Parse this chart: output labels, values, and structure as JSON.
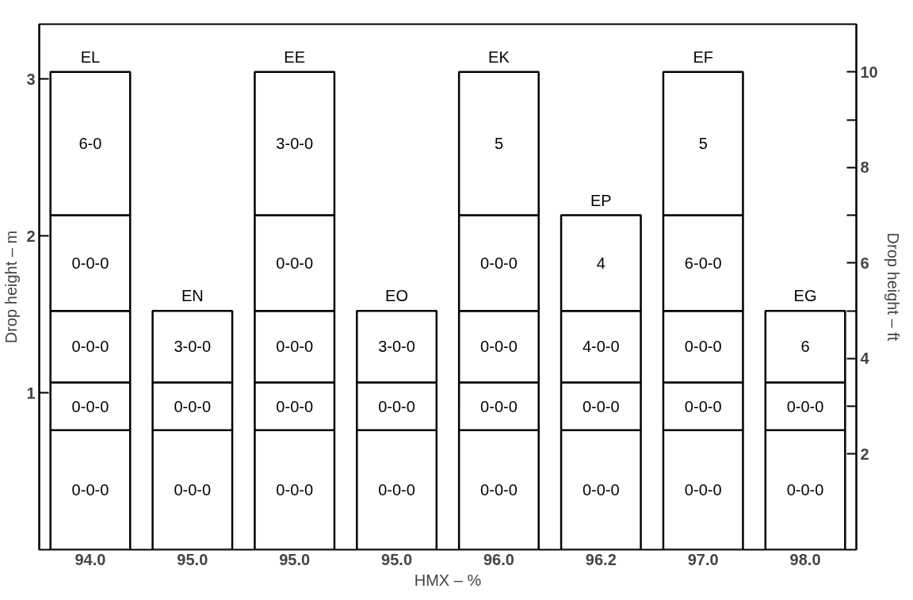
{
  "chart_data": {
    "type": "bar",
    "stacked": true,
    "xlabel": "HMX – %",
    "ylabel": "Drop height – m",
    "y2label": "Drop height – ft",
    "categories": [
      "94.0",
      "95.0",
      "95.0",
      "95.0",
      "96.0",
      "96.2",
      "97.0",
      "98.0"
    ],
    "ylim": [
      0,
      3.35
    ],
    "yticks": [
      1,
      2,
      3
    ],
    "y2lim": [
      0,
      11
    ],
    "y2ticks": [
      2,
      {
        "value": 3,
        "label": null
      },
      4,
      {
        "value": 5,
        "label": null
      },
      6,
      {
        "value": 7,
        "label": null
      },
      8,
      {
        "value": 9,
        "label": null
      },
      10
    ],
    "series": [
      {
        "color": "#ffffff",
        "axis": "y2",
        "values": [
          2.5,
          2.5,
          2.5,
          2.5,
          2.5,
          2.5,
          2.5,
          2.5
        ]
      },
      {
        "color": "#ffffff",
        "axis": "y2",
        "values": [
          1,
          1,
          1,
          1,
          1,
          1,
          1,
          1
        ]
      },
      {
        "color": "#ffffff",
        "axis": "y2",
        "values": [
          1.5,
          1.5,
          1.5,
          1.5,
          1.5,
          1.5,
          1.5,
          1.5
        ]
      },
      {
        "color": "#ffffff",
        "axis": "y2",
        "values": [
          2,
          null,
          2,
          null,
          2,
          2,
          2,
          null
        ]
      },
      {
        "color": "#ffffff",
        "axis": "y2",
        "values": [
          3,
          null,
          3,
          null,
          3,
          null,
          3,
          null
        ]
      }
    ],
    "annotations": [
      "EL",
      "0-0-0",
      "0-0-0",
      "0-0-0",
      "0-0-0",
      "6-0",
      "EN",
      "0-0-0",
      "0-0-0",
      "3-0-0",
      "EE",
      "0-0-0",
      "0-0-0",
      "0-0-0",
      "0-0-0",
      "3-0-0",
      "EO",
      "0-0-0",
      "0-0-0",
      "3-0-0",
      "EK",
      "0-0-0",
      "0-0-0",
      "0-0-0",
      "0-0-0",
      "5",
      "EP",
      "0-0-0",
      "0-0-0",
      "4-0-0",
      "4",
      "EF",
      "0-0-0",
      "0-0-0",
      "0-0-0",
      "6-0-0",
      "5",
      "EG",
      "0-0-0",
      "0-0-0",
      "6"
    ],
    "grid": false
  }
}
